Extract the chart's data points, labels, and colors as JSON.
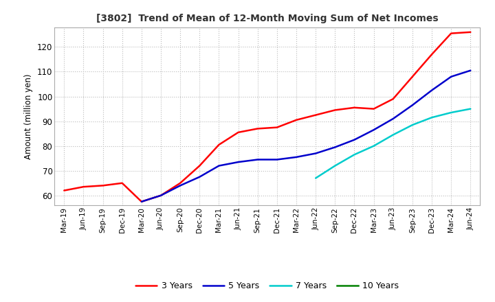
{
  "title": "[3802]  Trend of Mean of 12-Month Moving Sum of Net Incomes",
  "ylabel": "Amount (million yen)",
  "ylim": [
    56,
    128
  ],
  "yticks": [
    60,
    70,
    80,
    90,
    100,
    110,
    120
  ],
  "background_color": "#ffffff",
  "grid_color": "#bbbbbb",
  "line_3y_color": "#ff0000",
  "line_5y_color": "#0000cc",
  "line_7y_color": "#00cccc",
  "line_10y_color": "#008000",
  "x_labels": [
    "Mar-19",
    "Jun-19",
    "Sep-19",
    "Dec-19",
    "Mar-20",
    "Jun-20",
    "Sep-20",
    "Dec-20",
    "Mar-21",
    "Jun-21",
    "Sep-21",
    "Dec-21",
    "Mar-22",
    "Jun-22",
    "Sep-22",
    "Dec-22",
    "Mar-23",
    "Jun-23",
    "Sep-23",
    "Dec-23",
    "Mar-24",
    "Jun-24"
  ],
  "data_3y": [
    62.0,
    63.5,
    64.0,
    65.0,
    57.5,
    60.0,
    65.0,
    72.0,
    80.5,
    85.5,
    87.0,
    87.5,
    90.5,
    92.5,
    94.5,
    95.5,
    95.0,
    99.0,
    108.0,
    117.0,
    125.5,
    126.0
  ],
  "data_5y": [
    null,
    null,
    null,
    null,
    57.5,
    60.0,
    64.0,
    67.5,
    72.0,
    73.5,
    74.5,
    74.5,
    75.5,
    77.0,
    79.5,
    82.5,
    86.5,
    91.0,
    96.5,
    102.5,
    108.0,
    110.5
  ],
  "data_7y": [
    null,
    null,
    null,
    null,
    null,
    null,
    null,
    null,
    null,
    null,
    null,
    null,
    null,
    67.0,
    72.0,
    76.5,
    80.0,
    84.5,
    88.5,
    91.5,
    93.5,
    95.0
  ],
  "data_10y": []
}
